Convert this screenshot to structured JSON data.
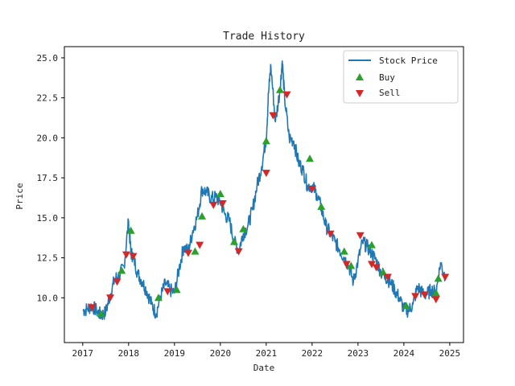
{
  "chart_data": {
    "type": "line",
    "title": "Trade History",
    "xlabel": "Date",
    "ylabel": "Price",
    "xlim": [
      2016.6,
      2025.3
    ],
    "ylim": [
      7.2,
      25.7
    ],
    "xticks": [
      2017,
      2018,
      2019,
      2020,
      2021,
      2022,
      2023,
      2024,
      2025
    ],
    "xtick_labels": [
      "2017",
      "2018",
      "2019",
      "2020",
      "2021",
      "2022",
      "2023",
      "2024",
      "2025"
    ],
    "yticks": [
      10.0,
      12.5,
      15.0,
      17.5,
      20.0,
      22.5,
      25.0
    ],
    "ytick_labels": [
      "10.0",
      "12.5",
      "15.0",
      "17.5",
      "20.0",
      "22.5",
      "25.0"
    ],
    "grid": false,
    "legend_position": "top-right",
    "series": [
      {
        "name": "Stock Price",
        "color": "#1f77b4",
        "x": [
          2017.0,
          2017.1,
          2017.2,
          2017.3,
          2017.4,
          2017.5,
          2017.6,
          2017.7,
          2017.8,
          2017.9,
          2018.0,
          2018.05,
          2018.1,
          2018.2,
          2018.3,
          2018.4,
          2018.5,
          2018.6,
          2018.7,
          2018.8,
          2018.9,
          2019.0,
          2019.1,
          2019.2,
          2019.3,
          2019.4,
          2019.5,
          2019.6,
          2019.7,
          2019.8,
          2019.9,
          2020.0,
          2020.1,
          2020.2,
          2020.3,
          2020.4,
          2020.5,
          2020.6,
          2020.7,
          2020.8,
          2020.9,
          2021.0,
          2021.05,
          2021.1,
          2021.2,
          2021.3,
          2021.35,
          2021.4,
          2021.5,
          2021.6,
          2021.7,
          2021.8,
          2021.9,
          2022.0,
          2022.1,
          2022.2,
          2022.3,
          2022.4,
          2022.5,
          2022.6,
          2022.7,
          2022.8,
          2022.9,
          2023.0,
          2023.1,
          2023.2,
          2023.3,
          2023.4,
          2023.5,
          2023.6,
          2023.7,
          2023.8,
          2023.9,
          2024.0,
          2024.1,
          2024.2,
          2024.3,
          2024.4,
          2024.5,
          2024.6,
          2024.7,
          2024.8,
          2024.9
        ],
        "values": [
          9.2,
          9.3,
          9.5,
          9.2,
          8.9,
          9.1,
          10.2,
          11.2,
          11.4,
          12.0,
          14.8,
          12.8,
          12.6,
          11.5,
          11.0,
          10.4,
          9.6,
          9.0,
          10.1,
          10.9,
          10.5,
          10.3,
          11.8,
          13.2,
          12.9,
          14.2,
          15.1,
          16.8,
          16.6,
          16.2,
          16.3,
          16.0,
          15.2,
          14.8,
          13.5,
          13.0,
          14.0,
          14.5,
          15.5,
          17.0,
          18.2,
          20.0,
          22.8,
          24.5,
          21.0,
          23.0,
          24.8,
          22.5,
          20.0,
          19.8,
          18.5,
          18.0,
          17.0,
          17.0,
          16.5,
          15.6,
          14.5,
          14.0,
          13.5,
          13.0,
          12.5,
          12.0,
          11.0,
          12.3,
          13.5,
          13.2,
          12.8,
          12.3,
          11.6,
          11.3,
          11.0,
          10.5,
          10.0,
          9.3,
          9.2,
          9.6,
          10.7,
          10.3,
          10.2,
          10.5,
          10.3,
          12.2,
          11.3
        ]
      },
      {
        "name": "Buy",
        "color": "#2ca02c",
        "x": [
          2017.4,
          2017.85,
          2018.05,
          2018.65,
          2019.05,
          2019.45,
          2019.6,
          2020.0,
          2020.3,
          2020.5,
          2021.0,
          2021.3,
          2021.95,
          2022.2,
          2022.7,
          2022.85,
          2023.3,
          2023.55,
          2024.05,
          2024.7,
          2024.75
        ],
        "values": [
          9.0,
          11.7,
          14.2,
          10.0,
          10.5,
          12.9,
          15.1,
          16.5,
          13.5,
          14.3,
          19.8,
          23.0,
          18.7,
          15.7,
          12.9,
          12.0,
          13.3,
          11.6,
          9.5,
          10.3,
          11.2
        ]
      },
      {
        "name": "Sell",
        "color": "#d62728",
        "x": [
          2017.2,
          2017.6,
          2017.75,
          2017.95,
          2018.1,
          2018.85,
          2019.3,
          2019.55,
          2019.85,
          2020.05,
          2020.4,
          2021.0,
          2021.15,
          2021.45,
          2022.0,
          2022.4,
          2022.75,
          2023.05,
          2023.3,
          2023.4,
          2023.65,
          2024.25,
          2024.45,
          2024.7,
          2024.9
        ],
        "values": [
          9.4,
          10.0,
          11.0,
          12.7,
          12.6,
          10.4,
          12.8,
          13.3,
          15.8,
          15.9,
          12.9,
          17.8,
          21.4,
          22.7,
          16.8,
          14.0,
          12.1,
          13.9,
          12.1,
          11.9,
          11.3,
          10.1,
          10.2,
          9.9,
          11.3
        ]
      }
    ]
  }
}
